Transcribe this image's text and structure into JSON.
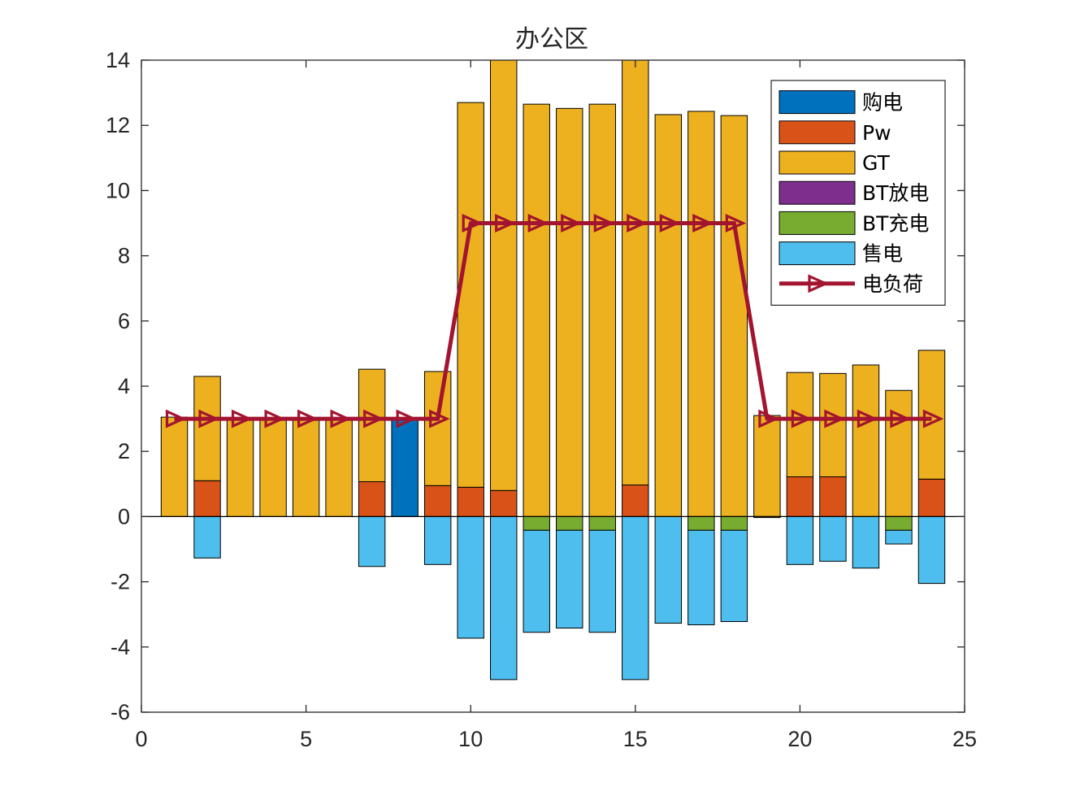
{
  "chart_data": {
    "type": "bar",
    "stacked": true,
    "title": "办公区",
    "xlabel": "",
    "ylabel": "",
    "xlim": [
      0,
      25
    ],
    "ylim": [
      -6,
      14
    ],
    "xticks": [
      "0",
      "5",
      "10",
      "15",
      "20",
      "25"
    ],
    "yticks": [
      "-6",
      "-4",
      "-2",
      "0",
      "2",
      "4",
      "6",
      "8",
      "10",
      "12",
      "14"
    ],
    "categories": [
      1,
      2,
      3,
      4,
      5,
      6,
      7,
      8,
      9,
      10,
      11,
      12,
      13,
      14,
      15,
      16,
      17,
      18,
      19,
      20,
      21,
      22,
      23,
      24
    ],
    "legend_position": "top-right",
    "grid": false,
    "series": [
      {
        "name": "购电",
        "color": "#0072BD",
        "values": [
          0,
          0,
          0,
          0,
          0,
          0,
          0,
          3.0,
          0,
          0,
          0,
          0,
          0,
          0,
          0,
          0,
          0,
          0,
          0,
          0,
          0,
          0,
          0,
          0
        ]
      },
      {
        "name": "Pw",
        "color": "#D95319",
        "values": [
          0,
          1.1,
          0,
          0,
          0,
          0,
          1.07,
          0,
          0.95,
          0.9,
          0.8,
          0,
          0,
          0,
          0.97,
          0,
          0,
          0,
          0,
          1.22,
          1.22,
          0,
          0,
          1.15
        ]
      },
      {
        "name": "GT",
        "color": "#EDB120",
        "values": [
          3.05,
          3.2,
          3.0,
          3.0,
          3.0,
          3.0,
          3.45,
          0,
          3.5,
          11.8,
          13.2,
          12.65,
          12.52,
          12.65,
          13.03,
          12.33,
          12.43,
          12.3,
          3.1,
          3.2,
          3.17,
          4.65,
          3.87,
          3.95
        ]
      },
      {
        "name": "BT放电",
        "color": "#7E2F8E",
        "values": [
          0,
          0,
          0,
          0,
          0,
          0,
          0,
          0,
          0,
          0,
          0,
          0,
          0,
          0,
          0,
          0,
          0,
          0,
          0,
          0,
          0,
          0,
          0,
          0
        ]
      },
      {
        "name": "BT充电",
        "color": "#77AC30",
        "values": [
          0,
          0,
          0,
          0,
          0,
          0,
          0,
          0,
          0,
          0,
          0,
          -0.42,
          -0.42,
          -0.42,
          0,
          0,
          -0.42,
          -0.42,
          -0.03,
          0,
          0,
          0,
          -0.42,
          0
        ]
      },
      {
        "name": "售电",
        "color": "#4DBEEE",
        "values": [
          0,
          -1.27,
          0,
          0,
          0,
          0,
          -1.53,
          0,
          -1.47,
          -3.73,
          -5.0,
          -3.13,
          -3.0,
          -3.13,
          -5.0,
          -3.27,
          -2.9,
          -2.8,
          0,
          -1.47,
          -1.37,
          -1.58,
          -0.42,
          -2.05
        ]
      }
    ],
    "line_series": {
      "name": "电负荷",
      "color": "#A2142F",
      "marker": "triangle-right",
      "values": [
        3,
        3,
        3,
        3,
        3,
        3,
        3,
        3,
        3,
        9,
        9,
        9,
        9,
        9,
        9,
        9,
        9,
        9,
        3,
        3,
        3,
        3,
        3,
        3
      ]
    }
  }
}
